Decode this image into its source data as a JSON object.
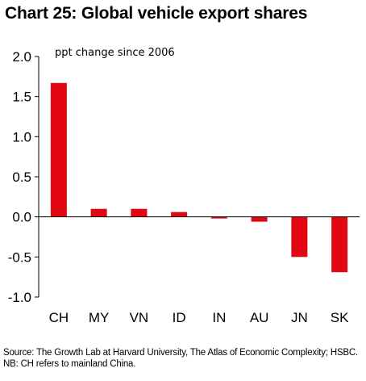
{
  "chart_data": {
    "type": "bar",
    "title": "Chart 25: Global vehicle export shares",
    "annotation": "ppt change since 2006",
    "categories": [
      "CH",
      "MY",
      "VN",
      "ID",
      "IN",
      "AU",
      "JN",
      "SK"
    ],
    "values": [
      1.67,
      0.1,
      0.1,
      0.06,
      -0.02,
      -0.06,
      -0.5,
      -0.69
    ],
    "ylim": [
      -1.0,
      2.0
    ],
    "yticks": [
      "2.0",
      "1.5",
      "1.0",
      "0.5",
      "0.0",
      "-0.5",
      "-1.0"
    ],
    "ytick_values": [
      2.0,
      1.5,
      1.0,
      0.5,
      0.0,
      -0.5,
      -1.0
    ],
    "bar_color": "#e30613",
    "grid": false,
    "source": "Source: The Growth Lab at Harvard University, The Atlas of Economic Complexity; HSBC. NB: CH refers to mainland China."
  }
}
